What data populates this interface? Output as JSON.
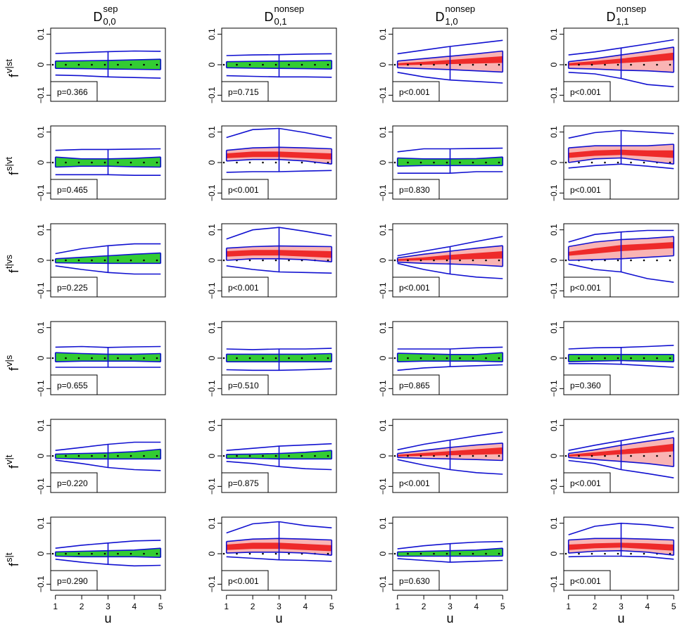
{
  "figure": {
    "column_titles": [
      {
        "base": "D",
        "sup": "sep",
        "sub": "0,0"
      },
      {
        "base": "D",
        "sup": "nonsep",
        "sub": "0,1"
      },
      {
        "base": "D",
        "sup": "nonsep",
        "sub": "1,0"
      },
      {
        "base": "D",
        "sup": "nonsep",
        "sub": "1,1"
      }
    ],
    "row_labels": [
      {
        "base": "f",
        "sup": "v|st"
      },
      {
        "base": "f",
        "sup": "s|vt"
      },
      {
        "base": "f",
        "sup": "t|vs"
      },
      {
        "base": "f",
        "sup": "v|s"
      },
      {
        "base": "f",
        "sup": "v|t"
      },
      {
        "base": "f",
        "sup": "s|t"
      }
    ],
    "xlabel": "u",
    "x": [
      1,
      2,
      3,
      4,
      5
    ],
    "xlim": [
      0.82,
      5.18
    ],
    "ylim": [
      -0.12,
      0.12
    ],
    "yticks": [
      {
        "value": -0.1,
        "label": "−0.1"
      },
      0,
      0.1
    ],
    "reference": 0
  },
  "chart_data": [
    {
      "type": "band",
      "p_label": "p=0.366",
      "fill": "#33cc33",
      "whisker_upper": [
        0.037,
        0.04,
        0.043,
        0.045,
        0.044
      ],
      "whisker_lower": [
        -0.034,
        -0.036,
        -0.04,
        -0.042,
        -0.044
      ],
      "box_upper": [
        0.012,
        0.013,
        0.014,
        0.016,
        0.018
      ],
      "box_lower": [
        -0.012,
        -0.013,
        -0.014,
        -0.015,
        -0.016
      ]
    },
    {
      "type": "band",
      "p_label": "p=0.715",
      "fill": "#33cc33",
      "whisker_upper": [
        0.03,
        0.032,
        0.033,
        0.035,
        0.036
      ],
      "whisker_lower": [
        -0.036,
        -0.038,
        -0.04,
        -0.04,
        -0.041
      ],
      "box_upper": [
        0.01,
        0.011,
        0.012,
        0.013,
        0.014
      ],
      "box_lower": [
        -0.01,
        -0.011,
        -0.012,
        -0.013,
        -0.014
      ]
    },
    {
      "type": "band",
      "p_label": "p<0.001",
      "fill": "#f9b4b4",
      "core_fill": "#ee2a2a",
      "whisker_upper": [
        0.036,
        0.048,
        0.06,
        0.07,
        0.08
      ],
      "whisker_lower": [
        -0.025,
        -0.04,
        -0.05,
        -0.055,
        -0.06
      ],
      "box_upper": [
        0.012,
        0.02,
        0.028,
        0.036,
        0.045
      ],
      "box_lower": [
        -0.01,
        -0.013,
        -0.016,
        -0.02,
        -0.024
      ],
      "core_upper": [
        0.005,
        0.01,
        0.016,
        0.022,
        0.028
      ],
      "core_lower": [
        -0.002,
        0.0,
        0.002,
        0.004,
        0.006
      ]
    },
    {
      "type": "band",
      "p_label": "p<0.001",
      "fill": "#f9b4b4",
      "core_fill": "#ee2a2a",
      "whisker_upper": [
        0.032,
        0.042,
        0.055,
        0.068,
        0.082
      ],
      "whisker_lower": [
        -0.025,
        -0.03,
        -0.045,
        -0.065,
        -0.072
      ],
      "box_upper": [
        0.01,
        0.02,
        0.032,
        0.044,
        0.058
      ],
      "box_lower": [
        -0.012,
        -0.014,
        -0.018,
        -0.02,
        -0.025
      ],
      "core_upper": [
        0.005,
        0.012,
        0.02,
        0.03,
        0.04
      ],
      "core_lower": [
        -0.003,
        0.0,
        0.005,
        0.01,
        0.015
      ]
    },
    {
      "type": "band",
      "p_label": "p=0.465",
      "fill": "#33cc33",
      "whisker_upper": [
        0.04,
        0.043,
        0.043,
        0.044,
        0.045
      ],
      "whisker_lower": [
        -0.04,
        -0.04,
        -0.04,
        -0.042,
        -0.042
      ],
      "box_upper": [
        0.018,
        0.012,
        0.012,
        0.014,
        0.018
      ],
      "box_lower": [
        -0.015,
        -0.012,
        -0.012,
        -0.014,
        -0.015
      ]
    },
    {
      "type": "band",
      "p_label": "p<0.001",
      "fill": "#f9b4b4",
      "core_fill": "#ee2a2a",
      "whisker_upper": [
        0.082,
        0.108,
        0.112,
        0.098,
        0.08
      ],
      "whisker_lower": [
        -0.032,
        -0.03,
        -0.03,
        -0.028,
        -0.026
      ],
      "box_upper": [
        0.04,
        0.048,
        0.05,
        0.048,
        0.045
      ],
      "box_lower": [
        0.005,
        0.01,
        0.01,
        0.005,
        -0.005
      ],
      "core_upper": [
        0.03,
        0.036,
        0.036,
        0.033,
        0.03
      ],
      "core_lower": [
        0.014,
        0.018,
        0.018,
        0.014,
        0.01
      ]
    },
    {
      "type": "band",
      "p_label": "p=0.830",
      "fill": "#33cc33",
      "whisker_upper": [
        0.035,
        0.045,
        0.045,
        0.046,
        0.047
      ],
      "whisker_lower": [
        -0.035,
        -0.035,
        -0.035,
        -0.03,
        -0.03
      ],
      "box_upper": [
        0.015,
        0.012,
        0.012,
        0.013,
        0.018
      ],
      "box_lower": [
        -0.012,
        -0.01,
        -0.01,
        -0.01,
        -0.01
      ]
    },
    {
      "type": "band",
      "p_label": "p<0.001",
      "fill": "#f9b4b4",
      "core_fill": "#ee2a2a",
      "whisker_upper": [
        0.08,
        0.098,
        0.105,
        0.1,
        0.095
      ],
      "whisker_lower": [
        -0.018,
        -0.01,
        -0.005,
        -0.012,
        -0.02
      ],
      "box_upper": [
        0.048,
        0.055,
        0.055,
        0.055,
        0.06
      ],
      "box_lower": [
        0.0,
        0.012,
        0.015,
        0.005,
        -0.005
      ],
      "core_upper": [
        0.032,
        0.04,
        0.042,
        0.04,
        0.04
      ],
      "core_lower": [
        0.015,
        0.022,
        0.025,
        0.02,
        0.015
      ]
    },
    {
      "type": "band",
      "p_label": "p=0.225",
      "fill": "#33cc33",
      "whisker_upper": [
        0.022,
        0.038,
        0.048,
        0.054,
        0.054
      ],
      "whisker_lower": [
        -0.018,
        -0.03,
        -0.04,
        -0.045,
        -0.045
      ],
      "box_upper": [
        0.005,
        0.01,
        0.015,
        0.02,
        0.024
      ],
      "box_lower": [
        -0.008,
        -0.009,
        -0.01,
        -0.01,
        -0.01
      ]
    },
    {
      "type": "band",
      "p_label": "p<0.001",
      "fill": "#f9b4b4",
      "core_fill": "#ee2a2a",
      "whisker_upper": [
        0.07,
        0.1,
        0.108,
        0.095,
        0.08
      ],
      "whisker_lower": [
        -0.018,
        -0.03,
        -0.038,
        -0.04,
        -0.042
      ],
      "box_upper": [
        0.04,
        0.045,
        0.047,
        0.046,
        0.045
      ],
      "box_lower": [
        0.0,
        0.005,
        0.005,
        0.002,
        -0.005
      ],
      "core_upper": [
        0.03,
        0.034,
        0.034,
        0.032,
        0.03
      ],
      "core_lower": [
        0.012,
        0.016,
        0.016,
        0.012,
        0.008
      ]
    },
    {
      "type": "band",
      "p_label": "p<0.001",
      "fill": "#f9b4b4",
      "core_fill": "#ee2a2a",
      "whisker_upper": [
        0.015,
        0.03,
        0.045,
        0.062,
        0.078
      ],
      "whisker_lower": [
        -0.01,
        -0.03,
        -0.045,
        -0.055,
        -0.06
      ],
      "box_upper": [
        0.008,
        0.02,
        0.03,
        0.04,
        0.048
      ],
      "box_lower": [
        -0.006,
        -0.01,
        -0.012,
        -0.015,
        -0.02
      ],
      "core_upper": [
        0.004,
        0.01,
        0.018,
        0.024,
        0.03
      ],
      "core_lower": [
        -0.002,
        0.0,
        0.002,
        0.004,
        0.006
      ]
    },
    {
      "type": "band",
      "p_label": "p<0.001",
      "fill": "#f9b4b4",
      "core_fill": "#ee2a2a",
      "whisker_upper": [
        0.06,
        0.085,
        0.093,
        0.098,
        0.098
      ],
      "whisker_lower": [
        -0.012,
        -0.03,
        -0.038,
        -0.06,
        -0.072
      ],
      "box_upper": [
        0.045,
        0.06,
        0.068,
        0.072,
        0.078
      ],
      "box_lower": [
        0.0,
        0.002,
        0.005,
        0.01,
        0.015
      ],
      "core_upper": [
        0.028,
        0.04,
        0.05,
        0.055,
        0.06
      ],
      "core_lower": [
        0.015,
        0.022,
        0.03,
        0.035,
        0.04
      ]
    },
    {
      "type": "band",
      "p_label": "p=0.655",
      "fill": "#33cc33",
      "whisker_upper": [
        0.036,
        0.038,
        0.035,
        0.037,
        0.038
      ],
      "whisker_lower": [
        -0.03,
        -0.03,
        -0.03,
        -0.03,
        -0.03
      ],
      "box_upper": [
        0.018,
        0.015,
        0.013,
        0.013,
        0.015
      ],
      "box_lower": [
        -0.012,
        -0.01,
        -0.01,
        -0.01,
        -0.012
      ]
    },
    {
      "type": "band",
      "p_label": "p=0.510",
      "fill": "#33cc33",
      "whisker_upper": [
        0.03,
        0.028,
        0.03,
        0.03,
        0.032
      ],
      "whisker_lower": [
        -0.038,
        -0.04,
        -0.04,
        -0.038,
        -0.035
      ],
      "box_upper": [
        0.013,
        0.013,
        0.013,
        0.013,
        0.015
      ],
      "box_lower": [
        -0.012,
        -0.012,
        -0.012,
        -0.012,
        -0.012
      ]
    },
    {
      "type": "band",
      "p_label": "p=0.865",
      "fill": "#33cc33",
      "whisker_upper": [
        0.03,
        0.03,
        0.03,
        0.034,
        0.036
      ],
      "whisker_lower": [
        -0.04,
        -0.032,
        -0.028,
        -0.025,
        -0.022
      ],
      "box_upper": [
        0.016,
        0.014,
        0.012,
        0.012,
        0.018
      ],
      "box_lower": [
        -0.012,
        -0.01,
        -0.01,
        -0.01,
        -0.012
      ]
    },
    {
      "type": "band",
      "p_label": "p=0.360",
      "fill": "#33cc33",
      "whisker_upper": [
        0.03,
        0.034,
        0.035,
        0.038,
        0.042
      ],
      "whisker_lower": [
        -0.018,
        -0.018,
        -0.02,
        -0.025,
        -0.03
      ],
      "box_upper": [
        0.012,
        0.012,
        0.012,
        0.012,
        0.012
      ],
      "box_lower": [
        -0.012,
        -0.01,
        -0.008,
        -0.01,
        -0.012
      ]
    },
    {
      "type": "band",
      "p_label": "p=0.220",
      "fill": "#33cc33",
      "whisker_upper": [
        0.018,
        0.028,
        0.038,
        0.045,
        0.045
      ],
      "whisker_lower": [
        -0.014,
        -0.025,
        -0.038,
        -0.045,
        -0.048
      ],
      "box_upper": [
        0.006,
        0.008,
        0.01,
        0.014,
        0.022
      ],
      "box_lower": [
        -0.008,
        -0.01,
        -0.01,
        -0.01,
        -0.01
      ]
    },
    {
      "type": "band",
      "p_label": "p=0.875",
      "fill": "#33cc33",
      "whisker_upper": [
        0.018,
        0.025,
        0.032,
        0.036,
        0.04
      ],
      "whisker_lower": [
        -0.018,
        -0.025,
        -0.035,
        -0.042,
        -0.045
      ],
      "box_upper": [
        0.005,
        0.006,
        0.008,
        0.012,
        0.018
      ],
      "box_lower": [
        -0.008,
        -0.008,
        -0.01,
        -0.01,
        -0.01
      ]
    },
    {
      "type": "band",
      "p_label": "p<0.001",
      "fill": "#f9b4b4",
      "core_fill": "#ee2a2a",
      "whisker_upper": [
        0.02,
        0.038,
        0.052,
        0.066,
        0.078
      ],
      "whisker_lower": [
        -0.012,
        -0.03,
        -0.045,
        -0.055,
        -0.06
      ],
      "box_upper": [
        0.008,
        0.018,
        0.028,
        0.036,
        0.042
      ],
      "box_lower": [
        -0.005,
        -0.008,
        -0.01,
        -0.012,
        -0.015
      ],
      "core_upper": [
        0.004,
        0.01,
        0.016,
        0.022,
        0.028
      ],
      "core_lower": [
        -0.002,
        0.0,
        0.002,
        0.004,
        0.006
      ]
    },
    {
      "type": "band",
      "p_label": "p<0.001",
      "fill": "#f9b4b4",
      "core_fill": "#ee2a2a",
      "whisker_upper": [
        0.018,
        0.035,
        0.05,
        0.065,
        0.08
      ],
      "whisker_lower": [
        -0.015,
        -0.025,
        -0.045,
        -0.058,
        -0.072
      ],
      "box_upper": [
        0.008,
        0.02,
        0.035,
        0.048,
        0.06
      ],
      "box_lower": [
        -0.005,
        -0.012,
        -0.018,
        -0.025,
        -0.035
      ],
      "core_upper": [
        0.004,
        0.012,
        0.02,
        0.03,
        0.04
      ],
      "core_lower": [
        -0.002,
        0.0,
        0.005,
        0.01,
        0.015
      ]
    },
    {
      "type": "band",
      "p_label": "p=0.290",
      "fill": "#33cc33",
      "whisker_upper": [
        0.018,
        0.028,
        0.035,
        0.042,
        0.044
      ],
      "whisker_lower": [
        -0.018,
        -0.028,
        -0.035,
        -0.04,
        -0.038
      ],
      "box_upper": [
        0.006,
        0.008,
        0.01,
        0.012,
        0.018
      ],
      "box_lower": [
        -0.008,
        -0.01,
        -0.01,
        -0.01,
        -0.012
      ]
    },
    {
      "type": "band",
      "p_label": "p<0.001",
      "fill": "#f9b4b4",
      "core_fill": "#ee2a2a",
      "whisker_upper": [
        0.068,
        0.098,
        0.105,
        0.092,
        0.085
      ],
      "whisker_lower": [
        -0.01,
        -0.015,
        -0.02,
        -0.022,
        -0.025
      ],
      "box_upper": [
        0.04,
        0.048,
        0.05,
        0.048,
        0.045
      ],
      "box_lower": [
        0.002,
        0.005,
        0.005,
        0.002,
        -0.005
      ],
      "core_upper": [
        0.03,
        0.036,
        0.036,
        0.032,
        0.028
      ],
      "core_lower": [
        0.012,
        0.016,
        0.016,
        0.012,
        0.008
      ]
    },
    {
      "type": "band",
      "p_label": "p=0.630",
      "fill": "#33cc33",
      "whisker_upper": [
        0.016,
        0.026,
        0.033,
        0.038,
        0.04
      ],
      "whisker_lower": [
        -0.016,
        -0.022,
        -0.028,
        -0.025,
        -0.022
      ],
      "box_upper": [
        0.006,
        0.008,
        0.01,
        0.012,
        0.018
      ],
      "box_lower": [
        -0.008,
        -0.008,
        -0.008,
        -0.008,
        -0.008
      ]
    },
    {
      "type": "band",
      "p_label": "p<0.001",
      "fill": "#f9b4b4",
      "core_fill": "#ee2a2a",
      "whisker_upper": [
        0.062,
        0.09,
        0.1,
        0.095,
        0.085
      ],
      "whisker_lower": [
        -0.01,
        -0.008,
        -0.008,
        -0.01,
        -0.018
      ],
      "box_upper": [
        0.045,
        0.05,
        0.05,
        0.048,
        0.045
      ],
      "box_lower": [
        0.002,
        0.008,
        0.01,
        0.005,
        -0.005
      ],
      "core_upper": [
        0.03,
        0.034,
        0.036,
        0.034,
        0.03
      ],
      "core_lower": [
        0.012,
        0.018,
        0.02,
        0.015,
        0.01
      ]
    }
  ]
}
